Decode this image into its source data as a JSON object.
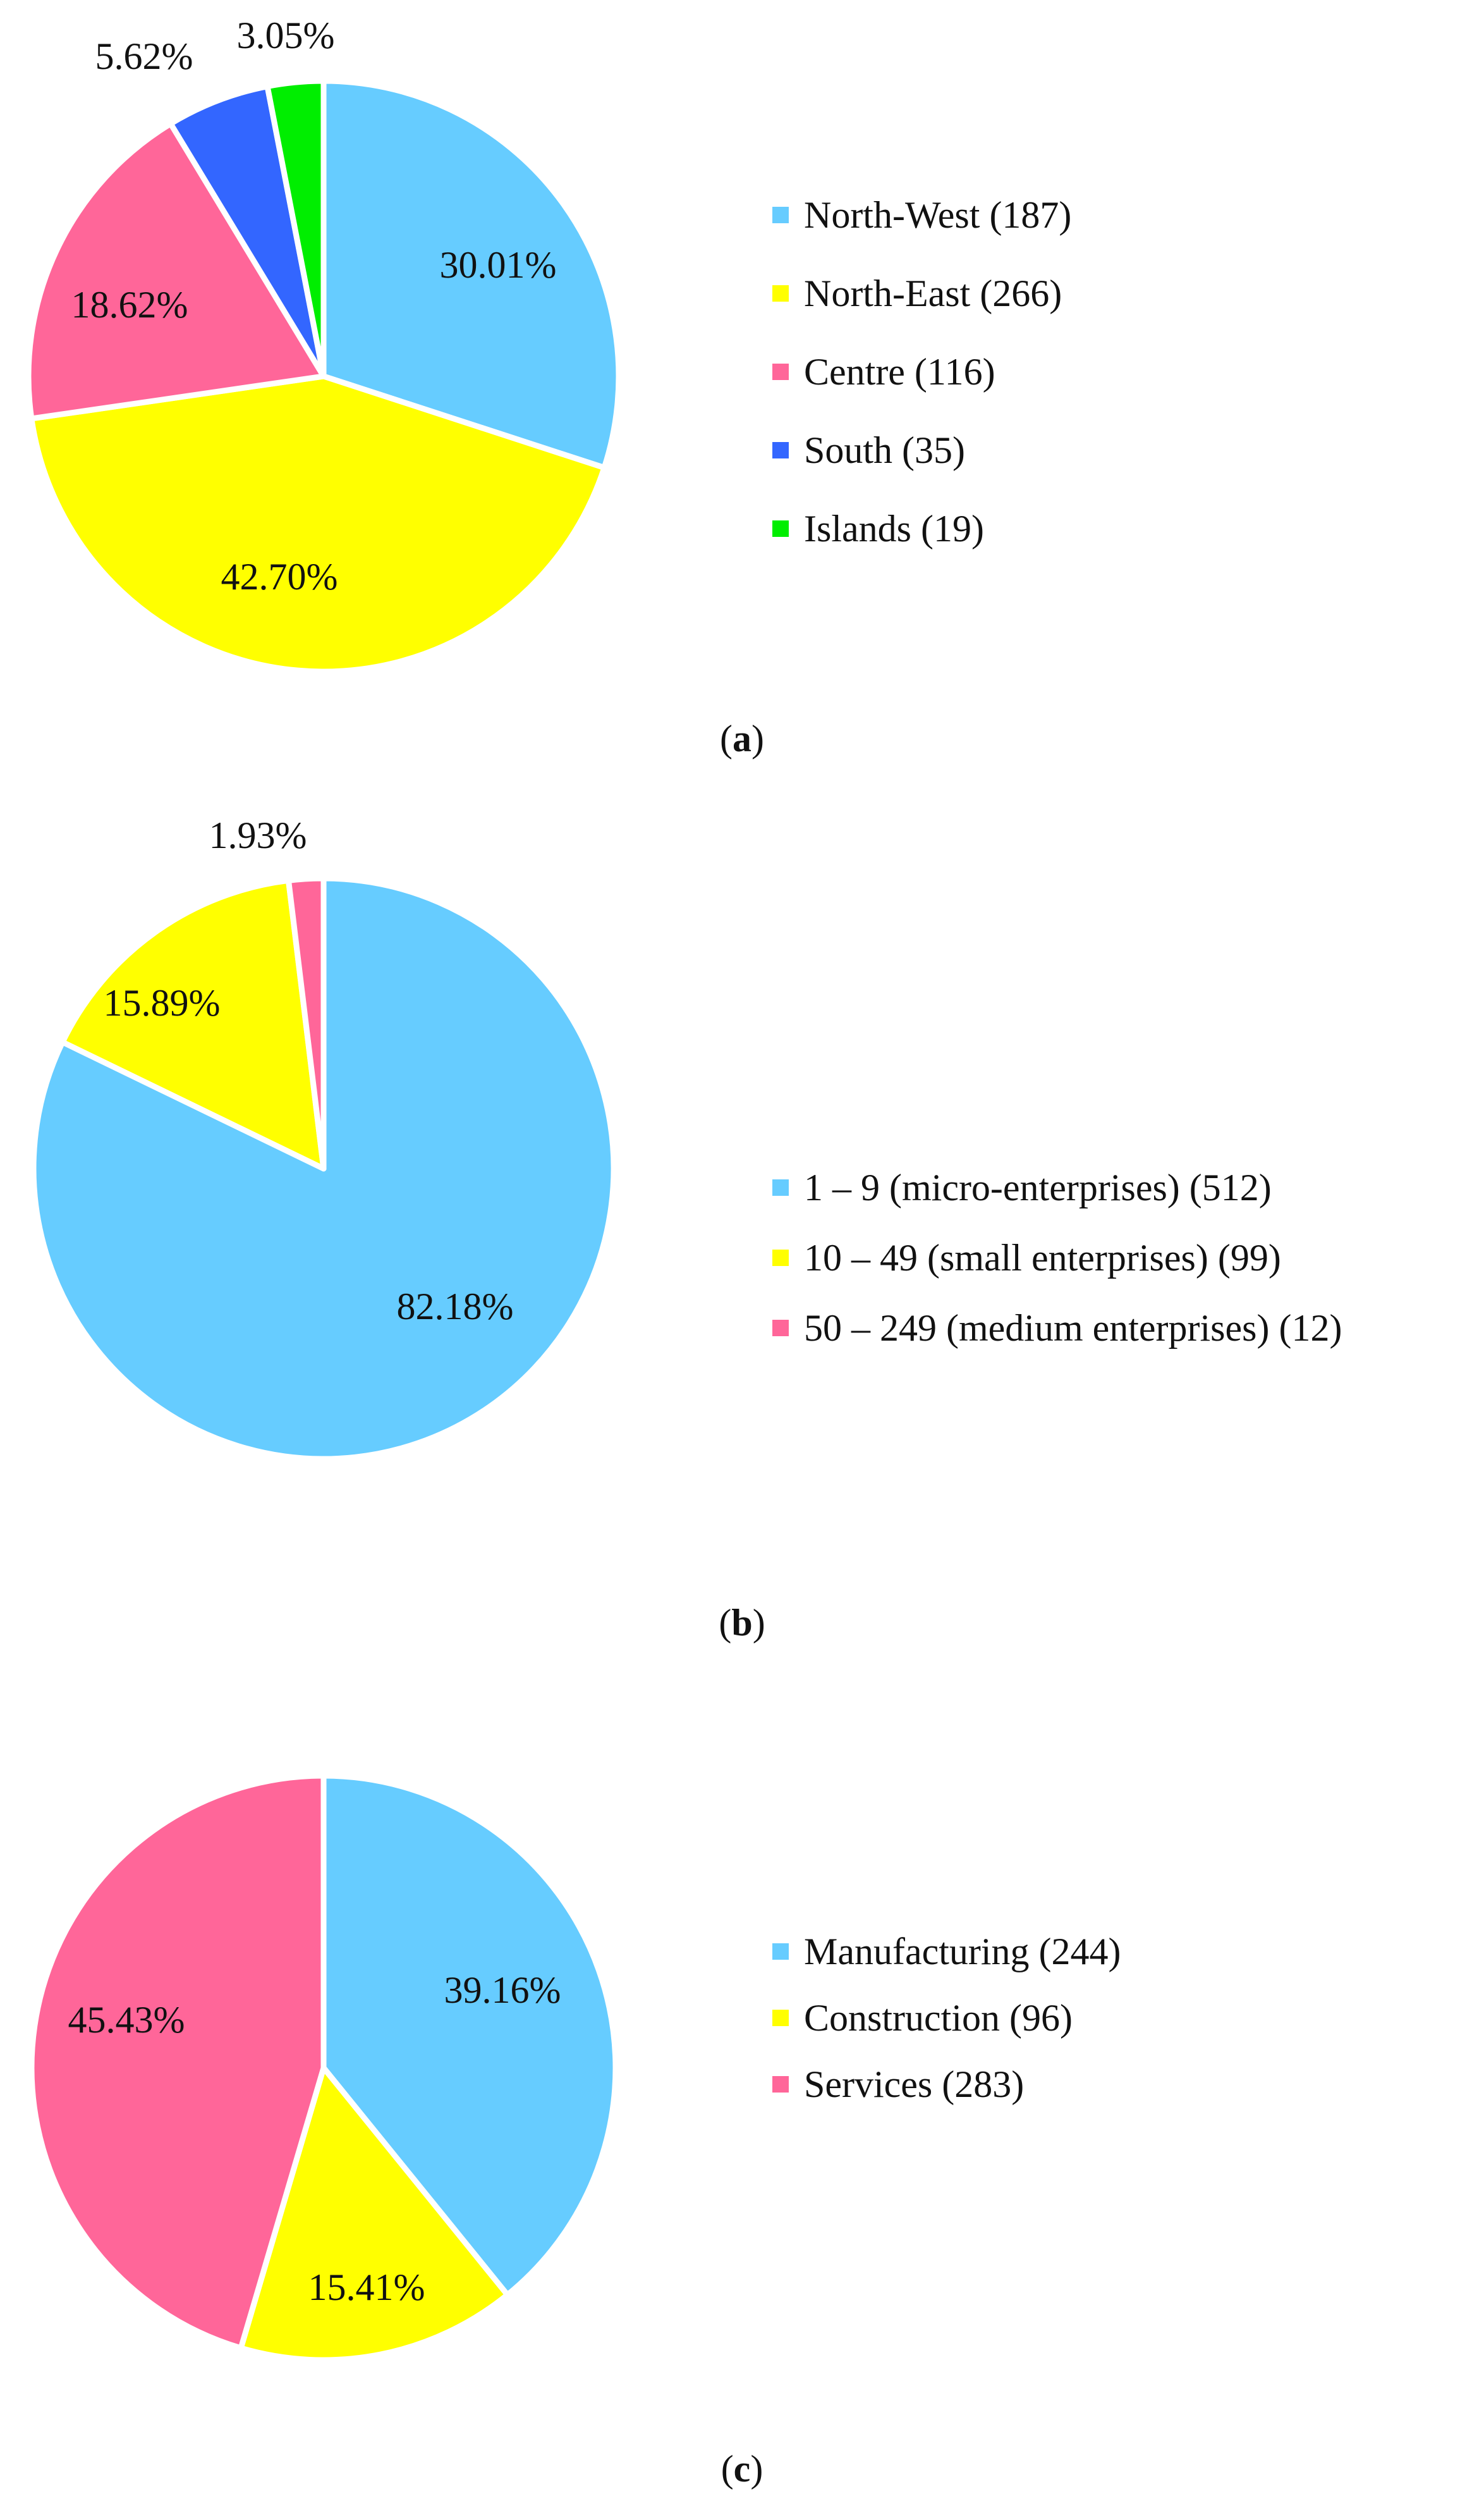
{
  "chart_data": [
    {
      "type": "pie",
      "caption_letter": "a",
      "categories": [
        "North-West (187)",
        "North-East (266)",
        "Centre (116)",
        "South (35)",
        "Islands (19)"
      ],
      "values": [
        30.01,
        42.7,
        18.62,
        5.62,
        3.05
      ],
      "labels": [
        "30.01%",
        "42.70%",
        "18.62%",
        "5.62%",
        "3.05%"
      ],
      "colors": [
        "#66CCFF",
        "#FFFF00",
        "#FF6699",
        "#3366FF",
        "#00EE00"
      ]
    },
    {
      "type": "pie",
      "caption_letter": "b",
      "categories": [
        "1 – 9 (micro-enterprises) (512)",
        "10 – 49 (small enterprises) (99)",
        "50 – 249 (medium enterprises) (12)"
      ],
      "values": [
        82.18,
        15.89,
        1.93
      ],
      "labels": [
        "82.18%",
        "15.89%",
        "1.93%"
      ],
      "colors": [
        "#66CCFF",
        "#FFFF00",
        "#FF6699"
      ]
    },
    {
      "type": "pie",
      "caption_letter": "c",
      "categories": [
        "Manufacturing (244)",
        "Construction (96)",
        "Services (283)"
      ],
      "values": [
        39.16,
        15.41,
        45.43
      ],
      "labels": [
        "39.16%",
        "15.41%",
        "45.43%"
      ],
      "colors": [
        "#66CCFF",
        "#FFFF00",
        "#FF6699"
      ]
    }
  ]
}
